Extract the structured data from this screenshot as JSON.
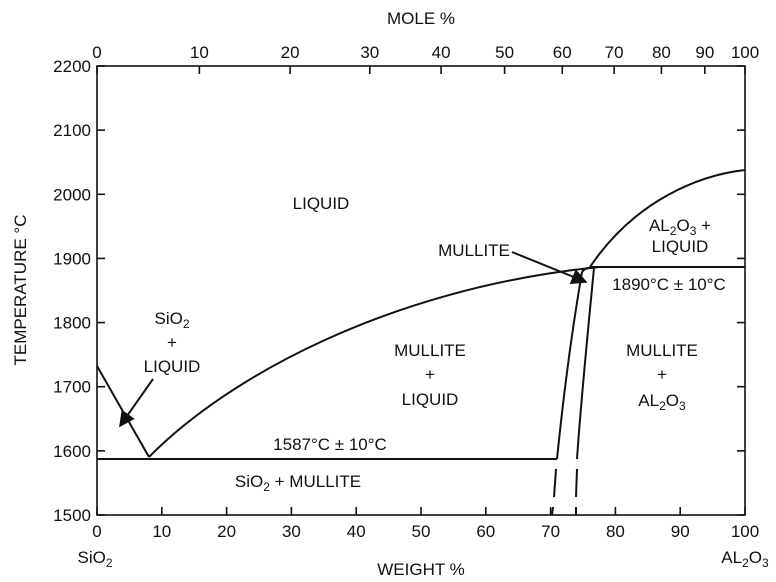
{
  "diagram": {
    "top_axis": {
      "title": "MOLE %",
      "ticks": [
        {
          "label": "0",
          "wt": 0
        },
        {
          "label": "10",
          "wt": 15.8
        },
        {
          "label": "20",
          "wt": 29.8
        },
        {
          "label": "30",
          "wt": 42.1
        },
        {
          "label": "40",
          "wt": 53.1
        },
        {
          "label": "50",
          "wt": 62.9
        },
        {
          "label": "60",
          "wt": 71.8
        },
        {
          "label": "70",
          "wt": 79.8
        },
        {
          "label": "80",
          "wt": 87.1
        },
        {
          "label": "90",
          "wt": 93.8
        },
        {
          "label": "100",
          "wt": 100
        }
      ]
    },
    "bottom_axis": {
      "title": "WEIGHT %",
      "range": [
        0,
        100
      ],
      "ticks": [
        "0",
        "10",
        "20",
        "30",
        "40",
        "50",
        "60",
        "70",
        "80",
        "90",
        "100"
      ],
      "left_end": {
        "text": "SiO",
        "sub": "2"
      },
      "right_end": {
        "text": "AL",
        "sub1": "2",
        "mid": "O",
        "sub2": "3"
      }
    },
    "y_axis": {
      "title": "TEMPERATURE °C",
      "range": [
        1500,
        2200
      ],
      "ticks": [
        "1500",
        "1600",
        "1700",
        "1800",
        "1900",
        "2000",
        "2100",
        "2200"
      ]
    },
    "regions": {
      "liquid": "LIQUID",
      "sio2_liquid": {
        "l1": "SiO",
        "l1sub": "2",
        "l2": "+",
        "l3": "LIQUID"
      },
      "mullite_liquid": {
        "l1": "MULLITE",
        "l2": "+",
        "l3": "LIQUID"
      },
      "al2o3_liquid": {
        "a": "AL",
        "s1": "2",
        "b": "O",
        "s2": "3",
        "plus": " +",
        "l2": "LIQUID"
      },
      "mullite_al2o3": {
        "l1": "MULLITE",
        "l2": "+",
        "a": "AL",
        "s1": "2",
        "b": "O",
        "s2": "3"
      },
      "sio2_mullite": {
        "a": "SiO",
        "s1": "2",
        "b": " + MULLITE"
      }
    },
    "annotations": {
      "mullite": "MULLITE",
      "eutectic_low": "1587°C ± 10°C",
      "eutectic_high": "1890°C ± 10°C"
    },
    "features": {
      "eutectic_low": {
        "wt": 8,
        "temp": 1587
      },
      "eutectic_high": {
        "wt": 77.5,
        "temp": 1890
      },
      "al2o3_melting": {
        "wt": 100,
        "temp": 2040
      },
      "sio2_melting": {
        "wt": 0,
        "temp": 1733
      }
    }
  }
}
